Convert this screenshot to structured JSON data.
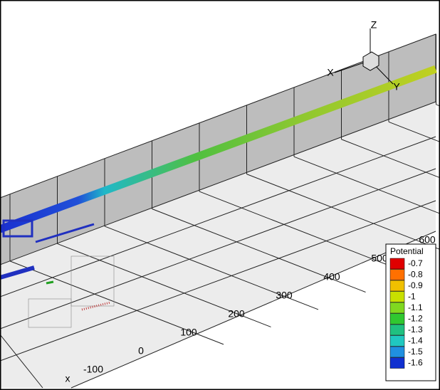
{
  "triad": {
    "z": "Z",
    "x": "X",
    "y": "Y"
  },
  "axis": {
    "name": "x",
    "ticks": [
      -100,
      0,
      100,
      200,
      300,
      400,
      500,
      600
    ]
  },
  "legend": {
    "title": "Potential",
    "levels": [
      {
        "value": -0.7,
        "color": "#e00000"
      },
      {
        "value": -0.8,
        "color": "#ff7000"
      },
      {
        "value": -0.9,
        "color": "#f0c000"
      },
      {
        "value": -1,
        "color": "#c8e000"
      },
      {
        "value": -1.1,
        "color": "#80d820"
      },
      {
        "value": -1.2,
        "color": "#30c830"
      },
      {
        "value": -1.3,
        "color": "#20c080"
      },
      {
        "value": -1.4,
        "color": "#20c8c0"
      },
      {
        "value": -1.5,
        "color": "#2090e0"
      },
      {
        "value": -1.6,
        "color": "#1030d0"
      }
    ]
  }
}
